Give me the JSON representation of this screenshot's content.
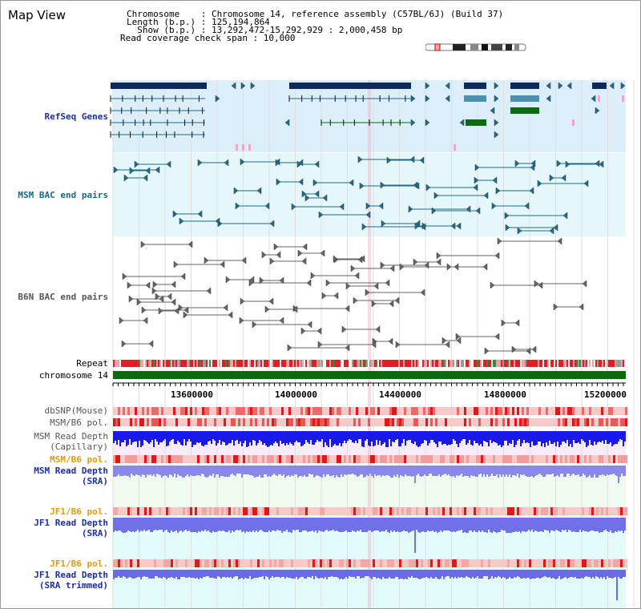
{
  "title": "Map View",
  "header": {
    "line1": "Chromosome    : Chromosome 14, reference assembly (C57BL/6J) (Build 37)",
    "line2": "Length (b.p.) : 125,194,864",
    "line3": "  Show (b.p.) : 13,292,472-15,292,929 : 2,000,458 bp",
    "line4": "Read coverage check span : 10,000"
  },
  "tracks": {
    "refseq": "RefSeq Genes",
    "msm_bac": "MSM BAC end pairs",
    "b6n_bac": "B6N BAC end pairs",
    "repeat": "Repeat",
    "chromosome": "chromosome 14",
    "dbsnp": "dbSNP(Mouse)",
    "msm_b6_pol_1": "MSM/B6 pol.",
    "msm_read_depth_cap_1": "MSM Read Depth",
    "msm_read_depth_cap_2": "(Capillary)",
    "msm_b6_pol_2": "MSM/B6 pol.",
    "msm_read_depth_sra_1": "MSM Read Depth",
    "msm_read_depth_sra_2": "(SRA)",
    "jf1_b6_pol_1": "JF1/B6 pol.",
    "jf1_read_depth_sra_1": "JF1 Read Depth",
    "jf1_read_depth_sra_2": "(SRA)",
    "jf1_b6_pol_2": "JF1/B6 pol.",
    "jf1_read_depth_trim_1": "JF1 Read Depth",
    "jf1_read_depth_trim_2": "(SRA trimmed)"
  },
  "axis": {
    "ticks": [
      "13600000",
      "14000000",
      "14400000",
      "14800000",
      "15200000"
    ]
  },
  "colors": {
    "refseq_bg": "#dbeef9",
    "msm_bg": "#e6f7fb",
    "gene_navy": "#0e2a5c",
    "gene_steel": "#4a90b0",
    "gene_green": "#0a6b12",
    "chromosome_green": "#0a6b0a",
    "teal": "#1a6e8e",
    "gray": "#666666",
    "depth_blue": "#1a1ae6",
    "depth_lavender": "#8a8ae8",
    "pol_red": "#e23a3a"
  }
}
